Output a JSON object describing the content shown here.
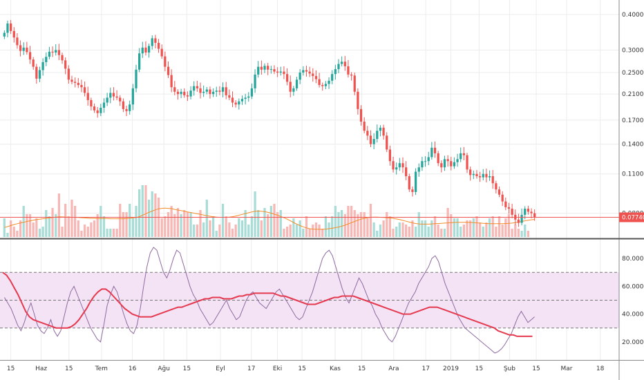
{
  "colors": {
    "up": "#26a69a",
    "down": "#ef5350",
    "vol_up": "#a8dcd6",
    "vol_down": "#f6b7b5",
    "vol_ma": "#f28c28",
    "price_line": "#ef5350",
    "rsi_line": "#8e6aa0",
    "rsi_ma": "#e53950",
    "rsi_band": "#f3e3f4",
    "grid": "#ececec",
    "divider": "#555555"
  },
  "price_axis": {
    "labels": [
      "0.4000000",
      "0.3000000",
      "0.2500000",
      "0.2100000",
      "0.1700000",
      "0.1400000",
      "0.1100000",
      "0.0800000"
    ],
    "current_label": "0.0774090"
  },
  "rsi_axis": {
    "labels": [
      "80.0000",
      "60.0000",
      "40.0000",
      "20.0000"
    ]
  },
  "x_axis": {
    "labels": [
      "15",
      "Haz",
      "15",
      "Tem",
      "16",
      "Ağu",
      "15",
      "Eyl",
      "17",
      "Eki",
      "15",
      "Kas",
      "15",
      "Ara",
      "17",
      "2019",
      "15",
      "Şub",
      "15",
      "Mar",
      "18"
    ]
  },
  "chart_data": [
    {
      "type": "candlestick",
      "scale": "log",
      "ylim": [
        0.066,
        0.44
      ],
      "current_price": 0.077409,
      "closes": [
        0.345,
        0.372,
        0.35,
        0.332,
        0.312,
        0.298,
        0.306,
        0.295,
        0.278,
        0.262,
        0.238,
        0.255,
        0.272,
        0.284,
        0.296,
        0.294,
        0.3,
        0.288,
        0.276,
        0.258,
        0.236,
        0.232,
        0.23,
        0.226,
        0.222,
        0.212,
        0.2,
        0.19,
        0.184,
        0.18,
        0.188,
        0.196,
        0.204,
        0.212,
        0.206,
        0.204,
        0.198,
        0.186,
        0.183,
        0.193,
        0.22,
        0.256,
        0.292,
        0.306,
        0.294,
        0.31,
        0.33,
        0.318,
        0.303,
        0.285,
        0.262,
        0.245,
        0.222,
        0.214,
        0.21,
        0.214,
        0.208,
        0.206,
        0.216,
        0.224,
        0.22,
        0.212,
        0.214,
        0.218,
        0.21,
        0.214,
        0.216,
        0.214,
        0.222,
        0.208,
        0.204,
        0.196,
        0.193,
        0.198,
        0.202,
        0.204,
        0.206,
        0.22,
        0.246,
        0.262,
        0.256,
        0.264,
        0.256,
        0.257,
        0.252,
        0.25,
        0.252,
        0.247,
        0.232,
        0.214,
        0.22,
        0.236,
        0.25,
        0.255,
        0.252,
        0.248,
        0.243,
        0.237,
        0.226,
        0.224,
        0.228,
        0.234,
        0.247,
        0.257,
        0.268,
        0.273,
        0.263,
        0.246,
        0.244,
        0.214,
        0.186,
        0.168,
        0.156,
        0.15,
        0.14,
        0.146,
        0.156,
        0.16,
        0.15,
        0.134,
        0.122,
        0.114,
        0.116,
        0.12,
        0.116,
        0.108,
        0.097,
        0.095,
        0.112,
        0.116,
        0.122,
        0.122,
        0.126,
        0.136,
        0.13,
        0.12,
        0.116,
        0.124,
        0.122,
        0.117,
        0.121,
        0.124,
        0.13,
        0.128,
        0.114,
        0.109,
        0.11,
        0.108,
        0.107,
        0.11,
        0.107,
        0.108,
        0.102,
        0.097,
        0.093,
        0.088,
        0.084,
        0.083,
        0.079,
        0.076,
        0.074,
        0.079,
        0.083,
        0.081,
        0.08,
        0.0774
      ],
      "volumes": [
        0.9,
        0.2,
        0.8,
        0.5,
        0.3,
        0.8,
        1.5,
        1.1,
        1.1,
        0.7,
        0.9,
        0.4,
        0.5,
        1.3,
        1.0,
        1.4,
        1.1,
        2.1,
        0.5,
        1.6,
        1.0,
        1.8,
        1.5,
        0.8,
        0.3,
        0.6,
        0.5,
        0.7,
        0.8,
        1.1,
        1.5,
        1.0,
        0.4,
        0.4,
        0.4,
        0.4,
        1.6,
        1.2,
        1.2,
        1.6,
        0.9,
        1.5,
        2.3,
        2.5,
        2.5,
        1.8,
        2.2,
        2.1,
        1.9,
        0.9,
        1.0,
        1.2,
        1.5,
        1.1,
        1.4,
        1.1,
        1.3,
        1.2,
        1.2,
        0.6,
        0.6,
        1.3,
        0.7,
        1.8,
        0.8,
        1.0,
        0.3,
        0.6,
        1.6,
        1.0,
        0.7,
        0.4,
        0.6,
        0.9,
        0.8,
        1.3,
        0.6,
        1.0,
        2.2,
        1.3,
        0.8,
        1.4,
        1.1,
        1.5,
        1.6,
        1.2,
        1.3,
        0.4,
        0.5,
        0.6,
        0.9,
        0.6,
        0.8,
        0.4,
        1.0,
        0.4,
        0.6,
        0.7,
        0.6,
        0.4,
        1.0,
        0.7,
        1.0,
        1.5,
        1.2,
        1.3,
        1.1,
        1.5,
        1.5,
        1.3,
        1.1,
        1.2,
        1.2,
        0.9,
        1.6,
        0.7,
        0.3,
        0.6,
        0.8,
        1.2,
        1.0,
        0.4,
        0.5,
        0.7,
        0.7,
        0.6,
        0.5,
        0.8,
        0.5,
        1.2,
        0.8,
        0.8,
        0.5,
        0.8,
        1.0,
        0.6,
        0.4,
        0.4,
        1.4,
        1.1,
        0.9,
        0.9,
        0.5,
        0.6,
        0.8,
        0.8,
        0.9,
        1.0,
        0.7,
        0.5,
        0.7,
        0.9,
        1.0,
        0.5,
        1.0,
        0.6,
        0.9,
        1.1,
        0.4,
        0.6,
        0.4,
        0.3,
        0.6,
        0.3
      ],
      "volume_ma": [
        0.46,
        0.5,
        0.55,
        0.6,
        0.64,
        0.68,
        0.71,
        0.75,
        0.78,
        0.81,
        0.84,
        0.86,
        0.88,
        0.9,
        0.92,
        0.94,
        0.96,
        0.97,
        0.97,
        0.96,
        0.96,
        0.95,
        0.95,
        0.94,
        0.93,
        0.92,
        0.91,
        0.9,
        0.9,
        0.89,
        0.89,
        0.89,
        0.89,
        0.88,
        0.88,
        0.88,
        0.88,
        0.88,
        0.89,
        0.9,
        0.92,
        0.94,
        0.98,
        1.05,
        1.12,
        1.19,
        1.25,
        1.31,
        1.36,
        1.38,
        1.39,
        1.38,
        1.37,
        1.33,
        1.3,
        1.27,
        1.24,
        1.21,
        1.18,
        1.15,
        1.12,
        1.09,
        1.06,
        1.03,
        1.0,
        0.98,
        0.96,
        0.95,
        0.95,
        0.95,
        0.96,
        0.98,
        1.01,
        1.05,
        1.09,
        1.13,
        1.17,
        1.21,
        1.24,
        1.25,
        1.24,
        1.22,
        1.19,
        1.15,
        1.1,
        1.05,
        0.99,
        0.93,
        0.86,
        0.78,
        0.7,
        0.62,
        0.55,
        0.49,
        0.44,
        0.4,
        0.38,
        0.37,
        0.37,
        0.37,
        0.38,
        0.4,
        0.42,
        0.45,
        0.48,
        0.52,
        0.57,
        0.63,
        0.69,
        0.75,
        0.81,
        0.86,
        0.9,
        0.93,
        0.95,
        0.96,
        0.96,
        0.95,
        0.94,
        0.93,
        0.92,
        0.9,
        0.87,
        0.84,
        0.8,
        0.76,
        0.72,
        0.68,
        0.65,
        0.63,
        0.62,
        0.62,
        0.62,
        0.63,
        0.64,
        0.65,
        0.66,
        0.67,
        0.68,
        0.69,
        0.7,
        0.71,
        0.71,
        0.71,
        0.71,
        0.7,
        0.69,
        0.68,
        0.67,
        0.66,
        0.65,
        0.64,
        0.64,
        0.64,
        0.64,
        0.64,
        0.65,
        0.66,
        0.67,
        0.69,
        0.72,
        0.75,
        0.78,
        0.81,
        0.83,
        0.85
      ]
    },
    {
      "type": "line",
      "ylim": [
        8,
        92
      ],
      "bands": [
        30,
        50,
        70
      ],
      "rsi": [
        52,
        48,
        44,
        38,
        32,
        28,
        34,
        42,
        48,
        40,
        32,
        28,
        26,
        30,
        36,
        28,
        24,
        28,
        38,
        48,
        56,
        60,
        54,
        48,
        42,
        36,
        30,
        26,
        22,
        20,
        32,
        46,
        54,
        60,
        56,
        48,
        40,
        33,
        28,
        26,
        32,
        44,
        60,
        74,
        84,
        88,
        86,
        78,
        70,
        66,
        72,
        80,
        86,
        84,
        76,
        68,
        60,
        54,
        50,
        44,
        40,
        36,
        32,
        34,
        38,
        42,
        46,
        50,
        44,
        40,
        36,
        38,
        44,
        50,
        54,
        56,
        52,
        48,
        46,
        44,
        48,
        52,
        56,
        58,
        54,
        50,
        46,
        42,
        38,
        36,
        38,
        44,
        50,
        56,
        64,
        72,
        80,
        84,
        86,
        82,
        74,
        66,
        58,
        52,
        48,
        54,
        60,
        66,
        62,
        56,
        50,
        46,
        40,
        36,
        30,
        26,
        22,
        20,
        24,
        30,
        36,
        42,
        48,
        52,
        56,
        62,
        66,
        70,
        74,
        80,
        82,
        78,
        70,
        62,
        56,
        50,
        44,
        38,
        34,
        30,
        28,
        26,
        24,
        22,
        20,
        18,
        16,
        14,
        12,
        13,
        15,
        18,
        22,
        26,
        32,
        38,
        42,
        38,
        34,
        36,
        38
      ],
      "rsi_ma": [
        70,
        68,
        64,
        59,
        54,
        48,
        42,
        38,
        36,
        35,
        34,
        33,
        32,
        31,
        30,
        30,
        30,
        30,
        31,
        33,
        36,
        40,
        44,
        49,
        53,
        56,
        58,
        58,
        56,
        53,
        50,
        47,
        44,
        42,
        40,
        39,
        38,
        38,
        38,
        38,
        39,
        40,
        41,
        42,
        43,
        44,
        45,
        45,
        46,
        47,
        48,
        49,
        50,
        51,
        51,
        52,
        52,
        52,
        51,
        51,
        51,
        52,
        53,
        53,
        54,
        54,
        55,
        55,
        55,
        55,
        55,
        55,
        54,
        53,
        53,
        52,
        51,
        50,
        49,
        48,
        47,
        47,
        47,
        48,
        49,
        50,
        51,
        52,
        52,
        53,
        53,
        53,
        53,
        52,
        51,
        50,
        49,
        48,
        47,
        46,
        45,
        44,
        43,
        42,
        41,
        40,
        40,
        40,
        41,
        42,
        43,
        44,
        45,
        45,
        45,
        44,
        43,
        42,
        41,
        40,
        39,
        38,
        37,
        36,
        35,
        34,
        33,
        32,
        31,
        30,
        28,
        27,
        26,
        25,
        25,
        24,
        24,
        24,
        24,
        24
      ]
    }
  ]
}
